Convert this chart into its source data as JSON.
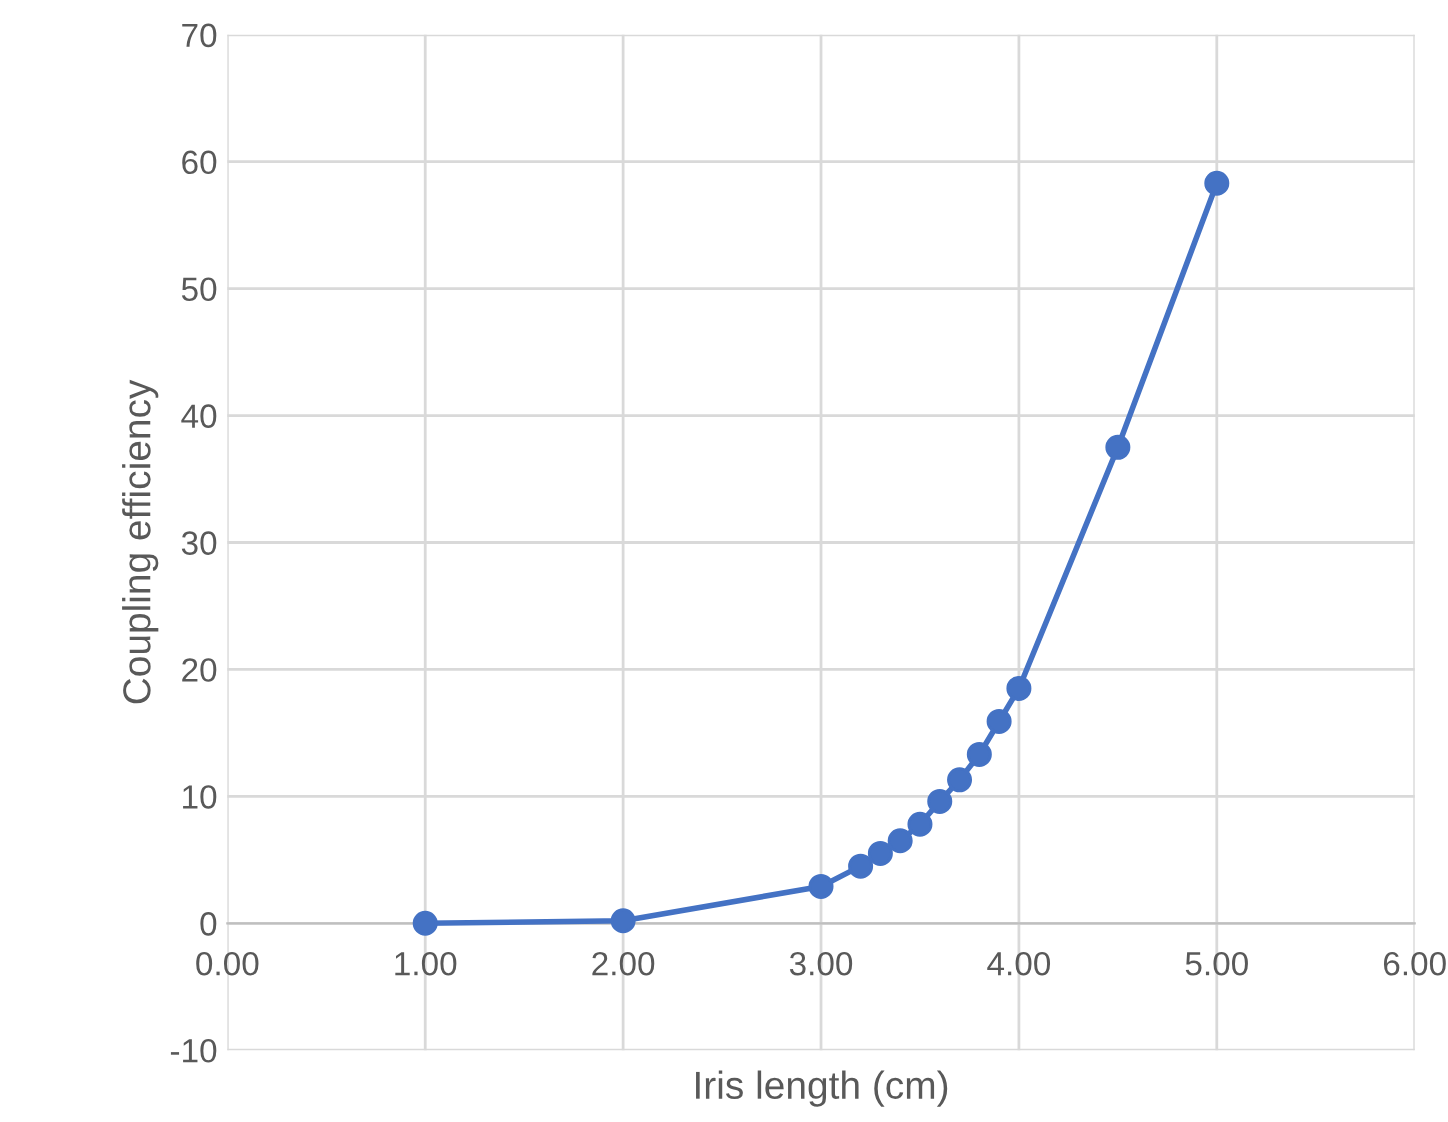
{
  "chart_data": {
    "type": "line",
    "xlabel": "Iris length (cm)",
    "ylabel": "Coupling efficiency",
    "x": [
      1.0,
      2.0,
      3.0,
      3.2,
      3.3,
      3.4,
      3.5,
      3.6,
      3.7,
      3.8,
      3.9,
      4.0,
      4.5,
      5.0
    ],
    "series": [
      {
        "color": "#4472c4",
        "values": [
          0.0,
          0.2,
          2.9,
          4.5,
          5.5,
          6.5,
          7.8,
          9.6,
          11.3,
          13.3,
          15.9,
          18.5,
          37.5,
          58.3
        ]
      }
    ],
    "xlim": [
      0,
      6
    ],
    "ylim": [
      -10,
      70
    ],
    "xticks": [
      {
        "value": 0,
        "label": "0.00"
      },
      {
        "value": 1,
        "label": "1.00"
      },
      {
        "value": 2,
        "label": "2.00"
      },
      {
        "value": 3,
        "label": "3.00"
      },
      {
        "value": 4,
        "label": "4.00"
      },
      {
        "value": 5,
        "label": "5.00"
      },
      {
        "value": 6,
        "label": "6.00"
      }
    ],
    "yticks": [
      -10,
      0,
      10,
      20,
      30,
      40,
      50,
      60,
      70
    ],
    "grid": true,
    "marker": "circle",
    "line_style": "solid"
  }
}
